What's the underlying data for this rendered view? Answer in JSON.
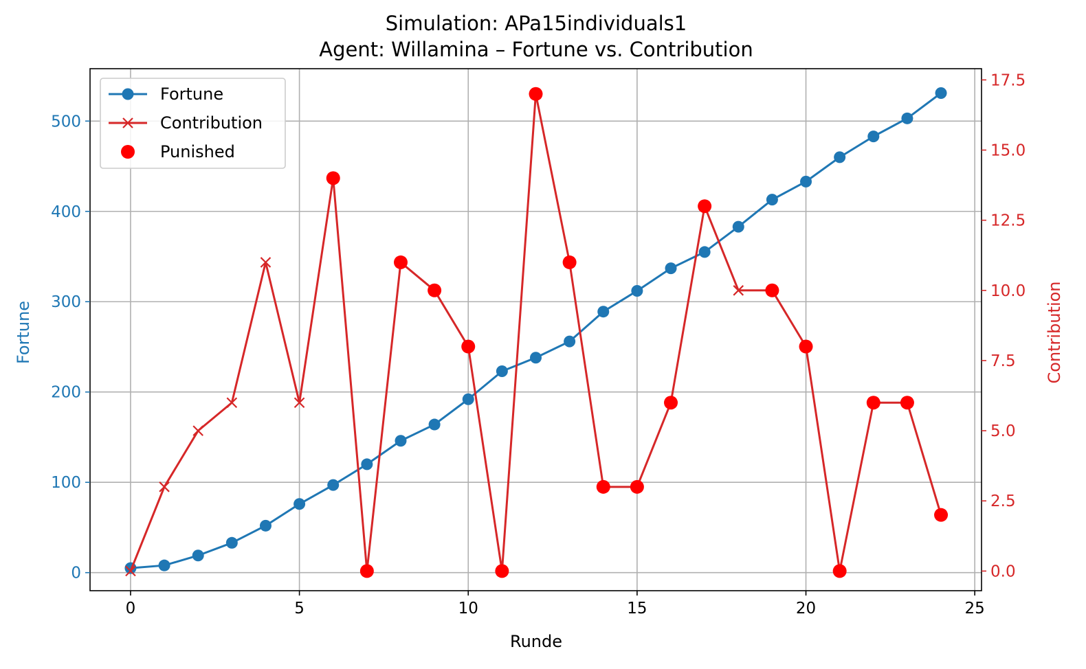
{
  "chart_data": {
    "type": "line",
    "title": "Simulation: APa15individuals1",
    "subtitle": "Agent: Willamina – Fortune vs. Contribution",
    "xlabel": "Runde",
    "ylabel_left": "Fortune",
    "ylabel_right": "Contribution",
    "xlim": [
      -1.2,
      25.2
    ],
    "ylim_left": [
      -20,
      558
    ],
    "ylim_right": [
      -0.7,
      17.9
    ],
    "x_ticks": [
      0,
      5,
      10,
      15,
      20,
      25
    ],
    "x_tick_labels": [
      "0",
      "5",
      "10",
      "15",
      "20",
      "25"
    ],
    "y_left_ticks": [
      0,
      100,
      200,
      300,
      400,
      500
    ],
    "y_left_tick_labels": [
      "0",
      "100",
      "200",
      "300",
      "400",
      "500"
    ],
    "y_right_ticks": [
      0,
      2.5,
      5,
      7.5,
      10,
      12.5,
      15,
      17.5
    ],
    "y_right_tick_labels": [
      "0.0",
      "2.5",
      "5.0",
      "7.5",
      "10.0",
      "12.5",
      "15.0",
      "17.5"
    ],
    "grid": true,
    "legend_position": "top-left",
    "x": [
      0,
      1,
      2,
      3,
      4,
      5,
      6,
      7,
      8,
      9,
      10,
      11,
      12,
      13,
      14,
      15,
      16,
      17,
      18,
      19,
      20,
      21,
      22,
      23,
      24
    ],
    "series": [
      {
        "name": "Fortune",
        "axis": "left",
        "color": "#1f77b4",
        "marker": "circle",
        "values": [
          5,
          8,
          19,
          33,
          52,
          76,
          97,
          120,
          146,
          164,
          192,
          223,
          238,
          256,
          289,
          312,
          337,
          355,
          383,
          413,
          433,
          460,
          483,
          503,
          531
        ]
      },
      {
        "name": "Contribution",
        "axis": "right",
        "color": "#d62728",
        "marker": "x",
        "values": [
          0,
          3,
          5,
          6,
          11,
          6,
          14,
          0,
          11,
          10,
          8,
          0,
          17,
          11,
          3,
          3,
          6,
          13,
          10,
          10,
          8,
          0,
          6,
          6,
          2
        ]
      },
      {
        "name": "Punished",
        "axis": "right",
        "color": "#ff0000",
        "marker": "dot",
        "x": [
          6,
          7,
          8,
          9,
          10,
          11,
          12,
          13,
          14,
          15,
          16,
          17,
          19,
          20,
          21,
          22,
          23,
          24
        ],
        "values": [
          14,
          0,
          11,
          10,
          8,
          0,
          17,
          11,
          3,
          3,
          6,
          13,
          10,
          8,
          0,
          6,
          6,
          2
        ]
      }
    ]
  }
}
